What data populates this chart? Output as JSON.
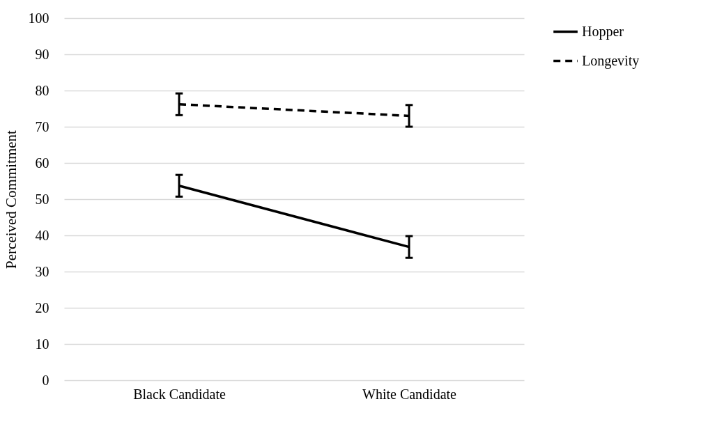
{
  "chart_data": {
    "type": "line",
    "ylabel": "Perceived Commitment",
    "categories": [
      "Black Candidate",
      "White Candidate"
    ],
    "series": [
      {
        "name": "Hopper",
        "color": "#000000",
        "values": [
          53.7,
          36.8
        ],
        "errors": [
          3,
          3
        ],
        "line_style": "solid"
      },
      {
        "name": "Longevity",
        "color": "#000000",
        "values": [
          76.2,
          73
        ],
        "errors": [
          3,
          3
        ],
        "line_style": "dashed"
      }
    ],
    "ylim": [
      0,
      100
    ],
    "yticks": [
      0,
      10,
      20,
      30,
      40,
      50,
      60,
      70,
      80,
      90,
      100
    ],
    "grid": "y",
    "legend": "right",
    "marker": "none"
  }
}
